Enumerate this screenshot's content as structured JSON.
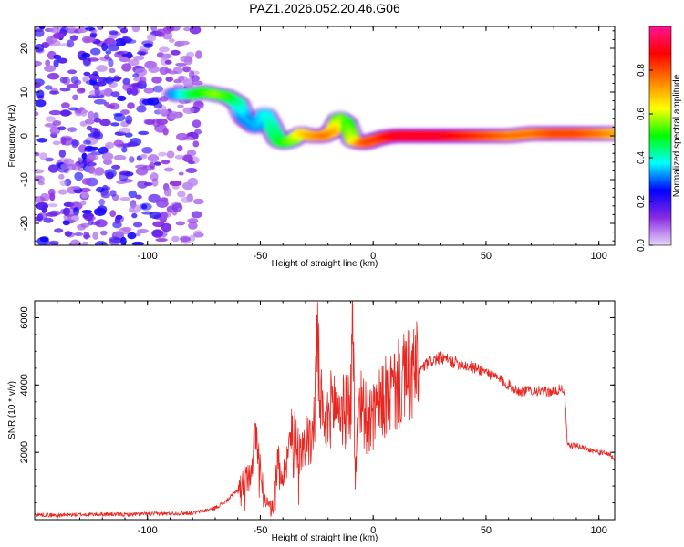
{
  "title": "PAZ1.2026.052.20.46.G06",
  "chart_data": [
    {
      "type": "heatmap",
      "title": "PAZ1.2026.052.20.46.G06",
      "xlabel": "Height of straight line (km)",
      "ylabel": "Frequency (Hz)",
      "xlim": [
        -150,
        107
      ],
      "ylim": [
        -25,
        25
      ],
      "x_ticks": [
        -100,
        -50,
        0,
        50,
        100
      ],
      "y_ticks": [
        -20,
        -10,
        0,
        10,
        20
      ],
      "colorbar": {
        "label": "Normalized spectral amplitude",
        "range": [
          0.0,
          1.0
        ],
        "ticks": [
          0.0,
          0.2,
          0.4,
          0.6,
          0.8
        ],
        "tick_labels": [
          "0.0",
          "0.2",
          "0.4",
          "0.6",
          "0.8"
        ],
        "colors": [
          "#e8d8f8",
          "#8a2be2",
          "#0000ff",
          "#00ffff",
          "#00ff00",
          "#ffff00",
          "#ff8000",
          "#ff0000",
          "#ff1493"
        ]
      },
      "ridge": {
        "x": [
          -88,
          -80,
          -75,
          -70,
          -65,
          -60,
          -57,
          -52,
          -48,
          -45,
          -42,
          -40,
          -36,
          -32,
          -28,
          -22,
          -18,
          -15,
          -12,
          -9,
          -6,
          -3,
          0,
          5,
          10,
          20,
          30,
          40,
          50,
          60,
          70,
          80,
          90,
          100,
          107
        ],
        "y": [
          9.5,
          9.5,
          10,
          9.5,
          9,
          7.5,
          4,
          2,
          5,
          2,
          -1,
          -1.5,
          -1,
          0.5,
          0,
          0,
          1,
          4,
          3,
          -1,
          -1.5,
          -1.5,
          -1,
          -0.3,
          0,
          0,
          0,
          0,
          0,
          0,
          0.5,
          0.5,
          0.5,
          0.5,
          0.5
        ],
        "amplitude": [
          0.35,
          0.5,
          0.55,
          0.6,
          0.55,
          0.45,
          0.35,
          0.35,
          0.4,
          0.45,
          0.5,
          0.55,
          0.6,
          0.7,
          0.75,
          0.8,
          0.75,
          0.6,
          0.55,
          0.65,
          0.8,
          0.85,
          0.85,
          0.9,
          0.95,
          0.95,
          0.95,
          0.9,
          0.85,
          0.8,
          0.8,
          0.85,
          0.85,
          0.8,
          0.75
        ]
      },
      "noise_region": {
        "x_range": [
          -150,
          -85
        ],
        "y_range": [
          -25,
          25
        ],
        "amplitude_range": [
          0.05,
          0.25
        ]
      }
    },
    {
      "type": "line",
      "xlabel": "Height of straight line (km)",
      "ylabel": "SNR (10 * v/v)",
      "xlim": [
        -150,
        107
      ],
      "ylim": [
        0,
        6500
      ],
      "x_ticks": [
        -100,
        -50,
        0,
        50,
        100
      ],
      "y_ticks": [
        2000,
        4000,
        6000
      ],
      "color": "#e8251f",
      "series": [
        {
          "name": "SNR",
          "x": [
            -150,
            -140,
            -130,
            -120,
            -110,
            -100,
            -90,
            -80,
            -75,
            -70,
            -65,
            -60,
            -55,
            -52,
            -50,
            -48,
            -45,
            -42,
            -40,
            -38,
            -35,
            -32,
            -30,
            -28,
            -26,
            -25,
            -22,
            -20,
            -18,
            -15,
            -12,
            -10,
            -9,
            -8,
            -6,
            -4,
            -2,
            0,
            2,
            5,
            10,
            15,
            20,
            25,
            30,
            35,
            40,
            45,
            50,
            55,
            60,
            65,
            70,
            75,
            80,
            84,
            85,
            86,
            90,
            95,
            100,
            105,
            107
          ],
          "y": [
            150,
            130,
            150,
            160,
            150,
            170,
            180,
            200,
            260,
            350,
            550,
            900,
            1300,
            2500,
            1500,
            600,
            400,
            1800,
            1200,
            2000,
            2800,
            1800,
            2600,
            2200,
            3000,
            5200,
            2500,
            3000,
            3500,
            3300,
            3200,
            3500,
            6300,
            1100,
            3800,
            3200,
            2800,
            3000,
            3200,
            3600,
            3900,
            4200,
            4400,
            4700,
            4800,
            4700,
            4600,
            4500,
            4400,
            4200,
            4000,
            3800,
            3850,
            3800,
            3800,
            3900,
            3700,
            2200,
            2200,
            2100,
            2000,
            1950,
            1700
          ]
        }
      ]
    }
  ]
}
